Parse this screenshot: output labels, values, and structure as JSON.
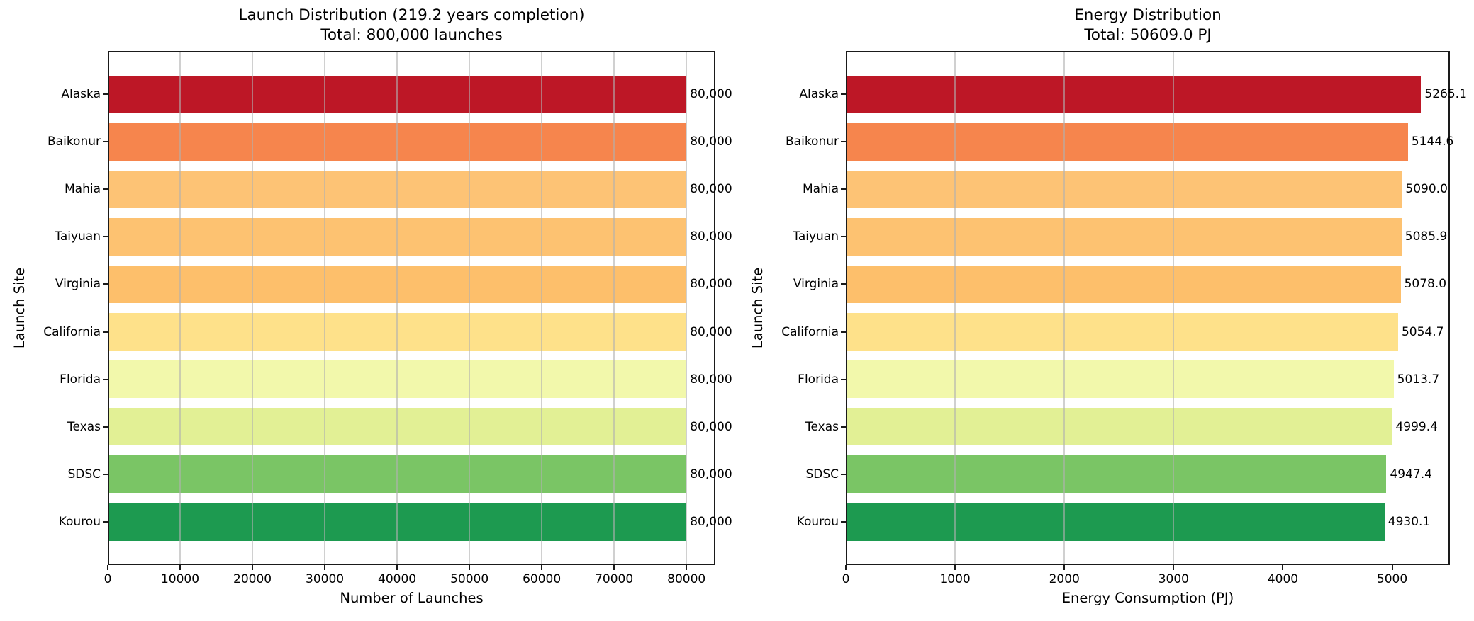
{
  "figure": {
    "background": "#ffffff"
  },
  "colors": {
    "bar_colors": [
      "#bd1726",
      "#f6854d",
      "#fdc375",
      "#fdc271",
      "#fdbf6b",
      "#fee18a",
      "#f2f8ab",
      "#e2f095",
      "#7ac565",
      "#1d9a50"
    ],
    "spine": "#1a1a1a",
    "grid": "#b0b0b0",
    "text": "#000000"
  },
  "chart_data": [
    {
      "type": "bar",
      "orientation": "horizontal",
      "title_lines": [
        "Launch Distribution (219.2 years completion)",
        "Total: 800,000 launches"
      ],
      "xlabel": "Number of Launches",
      "ylabel": "Launch Site",
      "categories": [
        "Alaska",
        "Baikonur",
        "Mahia",
        "Taiyuan",
        "Virginia",
        "California",
        "Florida",
        "Texas",
        "SDSC",
        "Kourou"
      ],
      "values": [
        80000,
        80000,
        80000,
        80000,
        80000,
        80000,
        80000,
        80000,
        80000,
        80000
      ],
      "bar_value_labels": [
        "80,000",
        "80,000",
        "80,000",
        "80,000",
        "80,000",
        "80,000",
        "80,000",
        "80,000",
        "80,000",
        "80,000"
      ],
      "xlim": [
        0,
        84000
      ],
      "xticks": [
        0,
        10000,
        20000,
        30000,
        40000,
        50000,
        60000,
        70000,
        80000
      ],
      "xtick_labels": [
        "0",
        "10000",
        "20000",
        "30000",
        "40000",
        "50000",
        "60000",
        "70000",
        "80000"
      ],
      "grid": true,
      "legend": null
    },
    {
      "type": "bar",
      "orientation": "horizontal",
      "title_lines": [
        "Energy Distribution",
        "Total: 50609.0 PJ"
      ],
      "xlabel": "Energy Consumption (PJ)",
      "ylabel": "Launch Site",
      "categories": [
        "Alaska",
        "Baikonur",
        "Mahia",
        "Taiyuan",
        "Virginia",
        "California",
        "Florida",
        "Texas",
        "SDSC",
        "Kourou"
      ],
      "values": [
        5265.1,
        5144.6,
        5090.0,
        5085.9,
        5078.0,
        5054.7,
        5013.7,
        4999.4,
        4947.4,
        4930.1
      ],
      "bar_value_labels": [
        "5265.1",
        "5144.6",
        "5090.0",
        "5085.9",
        "5078.0",
        "5054.7",
        "5013.7",
        "4999.4",
        "4947.4",
        "4930.1"
      ],
      "xlim": [
        0,
        5528.4
      ],
      "xticks": [
        0,
        1000,
        2000,
        3000,
        4000,
        5000
      ],
      "xtick_labels": [
        "0",
        "1000",
        "2000",
        "3000",
        "4000",
        "5000"
      ],
      "grid": true,
      "legend": null
    }
  ]
}
